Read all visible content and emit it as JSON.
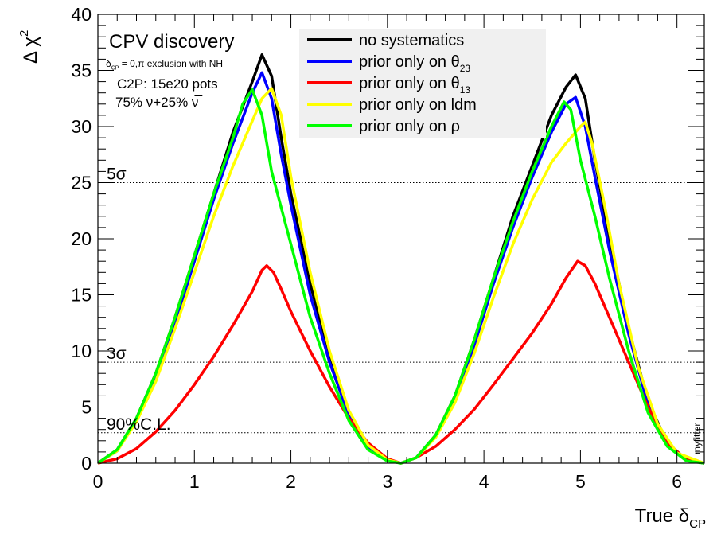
{
  "chart_data": {
    "type": "line",
    "xlabel": {
      "main": "True δ",
      "sub": "CP"
    },
    "ylabel": {
      "main": "Δ χ",
      "sup": "2"
    },
    "xlim": [
      0,
      6.283
    ],
    "ylim": [
      0,
      40
    ],
    "x_ticks": [
      0,
      1,
      2,
      3,
      4,
      5,
      6
    ],
    "y_ticks": [
      0,
      5,
      10,
      15,
      20,
      25,
      30,
      35,
      40
    ],
    "grid": false,
    "legend_position": "top-center",
    "annotations": {
      "title": "CPV discovery",
      "exclusion": {
        "pre": "δ",
        "sub": "CP",
        "post": " = 0,π exclusion with NH"
      },
      "pots": "C2P: 15e20 pots",
      "beam": "75% ν+25% ν̅",
      "watermark": "myfitter"
    },
    "reference_lines": [
      {
        "y": 25,
        "label": "5σ"
      },
      {
        "y": 9,
        "label": "3σ"
      },
      {
        "y": 2.71,
        "label": "90%C.L."
      }
    ],
    "series": [
      {
        "name": "no systematics",
        "label": {
          "main": "no systematics",
          "sub": ""
        },
        "color": "#000000",
        "points": [
          [
            0,
            0
          ],
          [
            0.2,
            1.2
          ],
          [
            0.4,
            4.0
          ],
          [
            0.6,
            8.0
          ],
          [
            0.8,
            13.0
          ],
          [
            1.0,
            18.5
          ],
          [
            1.2,
            24.0
          ],
          [
            1.4,
            29.5
          ],
          [
            1.6,
            34.0
          ],
          [
            1.7,
            36.4
          ],
          [
            1.8,
            34.5
          ],
          [
            1.9,
            29.0
          ],
          [
            2.0,
            24.0
          ],
          [
            2.2,
            16.0
          ],
          [
            2.4,
            9.5
          ],
          [
            2.6,
            4.5
          ],
          [
            2.8,
            1.5
          ],
          [
            3.0,
            0.3
          ],
          [
            3.14,
            0
          ],
          [
            3.3,
            0.5
          ],
          [
            3.5,
            2.5
          ],
          [
            3.7,
            6.0
          ],
          [
            3.9,
            11.0
          ],
          [
            4.1,
            16.5
          ],
          [
            4.3,
            22.0
          ],
          [
            4.5,
            26.5
          ],
          [
            4.7,
            31.0
          ],
          [
            4.85,
            33.5
          ],
          [
            4.95,
            34.6
          ],
          [
            5.05,
            32.5
          ],
          [
            5.15,
            27.0
          ],
          [
            5.3,
            20.0
          ],
          [
            5.5,
            12.0
          ],
          [
            5.7,
            5.5
          ],
          [
            5.9,
            1.8
          ],
          [
            6.1,
            0.3
          ],
          [
            6.283,
            0
          ]
        ]
      },
      {
        "name": "prior only on θ23",
        "label": {
          "main": "prior only on θ",
          "sub": "23"
        },
        "color": "#0000ff",
        "points": [
          [
            0,
            0
          ],
          [
            0.2,
            1.1
          ],
          [
            0.4,
            3.8
          ],
          [
            0.6,
            7.6
          ],
          [
            0.8,
            12.5
          ],
          [
            1.0,
            18.0
          ],
          [
            1.2,
            23.5
          ],
          [
            1.4,
            28.5
          ],
          [
            1.6,
            33.0
          ],
          [
            1.7,
            34.8
          ],
          [
            1.8,
            32.5
          ],
          [
            1.9,
            27.5
          ],
          [
            2.0,
            23.0
          ],
          [
            2.2,
            15.0
          ],
          [
            2.4,
            9.0
          ],
          [
            2.6,
            4.3
          ],
          [
            2.8,
            1.4
          ],
          [
            3.0,
            0.3
          ],
          [
            3.14,
            0
          ],
          [
            3.3,
            0.5
          ],
          [
            3.5,
            2.4
          ],
          [
            3.7,
            5.8
          ],
          [
            3.9,
            10.5
          ],
          [
            4.1,
            16.0
          ],
          [
            4.3,
            21.0
          ],
          [
            4.5,
            25.5
          ],
          [
            4.7,
            29.5
          ],
          [
            4.85,
            32.0
          ],
          [
            4.95,
            32.6
          ],
          [
            5.05,
            30.0
          ],
          [
            5.15,
            25.5
          ],
          [
            5.3,
            19.0
          ],
          [
            5.5,
            11.5
          ],
          [
            5.7,
            5.2
          ],
          [
            5.9,
            1.7
          ],
          [
            6.1,
            0.3
          ],
          [
            6.283,
            0
          ]
        ]
      },
      {
        "name": "prior only on θ13",
        "label": {
          "main": "prior only on θ",
          "sub": "13"
        },
        "color": "#ff0000",
        "points": [
          [
            0,
            0
          ],
          [
            0.2,
            0.4
          ],
          [
            0.4,
            1.3
          ],
          [
            0.6,
            2.8
          ],
          [
            0.8,
            4.7
          ],
          [
            1.0,
            7.0
          ],
          [
            1.2,
            9.5
          ],
          [
            1.4,
            12.3
          ],
          [
            1.6,
            15.3
          ],
          [
            1.7,
            17.2
          ],
          [
            1.75,
            17.6
          ],
          [
            1.82,
            17.0
          ],
          [
            1.9,
            15.5
          ],
          [
            2.0,
            13.5
          ],
          [
            2.2,
            10.0
          ],
          [
            2.4,
            6.8
          ],
          [
            2.6,
            4.0
          ],
          [
            2.8,
            1.8
          ],
          [
            3.0,
            0.4
          ],
          [
            3.14,
            0
          ],
          [
            3.3,
            0.5
          ],
          [
            3.5,
            1.5
          ],
          [
            3.7,
            3.0
          ],
          [
            3.9,
            4.8
          ],
          [
            4.1,
            7.0
          ],
          [
            4.3,
            9.3
          ],
          [
            4.5,
            11.6
          ],
          [
            4.7,
            14.2
          ],
          [
            4.85,
            16.5
          ],
          [
            4.97,
            18.0
          ],
          [
            5.05,
            17.6
          ],
          [
            5.15,
            16.0
          ],
          [
            5.3,
            13.0
          ],
          [
            5.5,
            9.0
          ],
          [
            5.7,
            5.0
          ],
          [
            5.9,
            1.8
          ],
          [
            6.1,
            0.3
          ],
          [
            6.283,
            0
          ]
        ]
      },
      {
        "name": "prior only on ldm",
        "label": {
          "main": "prior only on ldm",
          "sub": ""
        },
        "color": "#ffff00",
        "points": [
          [
            0,
            0
          ],
          [
            0.2,
            1.1
          ],
          [
            0.4,
            3.7
          ],
          [
            0.6,
            7.3
          ],
          [
            0.8,
            12.0
          ],
          [
            1.0,
            17.0
          ],
          [
            1.2,
            22.0
          ],
          [
            1.4,
            26.5
          ],
          [
            1.6,
            30.5
          ],
          [
            1.7,
            32.5
          ],
          [
            1.8,
            33.4
          ],
          [
            1.9,
            31.0
          ],
          [
            2.0,
            25.5
          ],
          [
            2.2,
            17.0
          ],
          [
            2.4,
            10.0
          ],
          [
            2.6,
            4.7
          ],
          [
            2.8,
            1.6
          ],
          [
            3.0,
            0.3
          ],
          [
            3.14,
            0
          ],
          [
            3.3,
            0.5
          ],
          [
            3.5,
            2.3
          ],
          [
            3.7,
            5.4
          ],
          [
            3.9,
            9.8
          ],
          [
            4.1,
            14.8
          ],
          [
            4.3,
            19.5
          ],
          [
            4.5,
            23.5
          ],
          [
            4.7,
            26.8
          ],
          [
            4.85,
            28.5
          ],
          [
            5.0,
            30.0
          ],
          [
            5.05,
            30.4
          ],
          [
            5.12,
            28.5
          ],
          [
            5.25,
            23.0
          ],
          [
            5.4,
            16.0
          ],
          [
            5.6,
            8.5
          ],
          [
            5.8,
            3.5
          ],
          [
            6.0,
            0.9
          ],
          [
            6.283,
            0
          ]
        ]
      },
      {
        "name": "prior only on ρ",
        "label": {
          "main": "prior only on ρ",
          "sub": ""
        },
        "color": "#00ff00",
        "points": [
          [
            0,
            0
          ],
          [
            0.2,
            1.2
          ],
          [
            0.4,
            4.0
          ],
          [
            0.6,
            8.0
          ],
          [
            0.8,
            13.0
          ],
          [
            1.0,
            18.5
          ],
          [
            1.2,
            24.0
          ],
          [
            1.4,
            29.0
          ],
          [
            1.5,
            32.0
          ],
          [
            1.6,
            33.3
          ],
          [
            1.7,
            31.0
          ],
          [
            1.8,
            26.0
          ],
          [
            2.0,
            19.5
          ],
          [
            2.2,
            13.0
          ],
          [
            2.4,
            8.0
          ],
          [
            2.6,
            3.8
          ],
          [
            2.8,
            1.2
          ],
          [
            3.0,
            0.2
          ],
          [
            3.14,
            0
          ],
          [
            3.3,
            0.5
          ],
          [
            3.5,
            2.5
          ],
          [
            3.7,
            6.0
          ],
          [
            3.9,
            11.0
          ],
          [
            4.1,
            16.5
          ],
          [
            4.3,
            21.5
          ],
          [
            4.5,
            26.0
          ],
          [
            4.7,
            30.0
          ],
          [
            4.83,
            32.2
          ],
          [
            4.9,
            31.5
          ],
          [
            5.0,
            27.0
          ],
          [
            5.15,
            22.0
          ],
          [
            5.3,
            16.5
          ],
          [
            5.5,
            10.0
          ],
          [
            5.7,
            4.5
          ],
          [
            5.9,
            1.5
          ],
          [
            6.1,
            0.2
          ],
          [
            6.283,
            0
          ]
        ]
      }
    ]
  }
}
